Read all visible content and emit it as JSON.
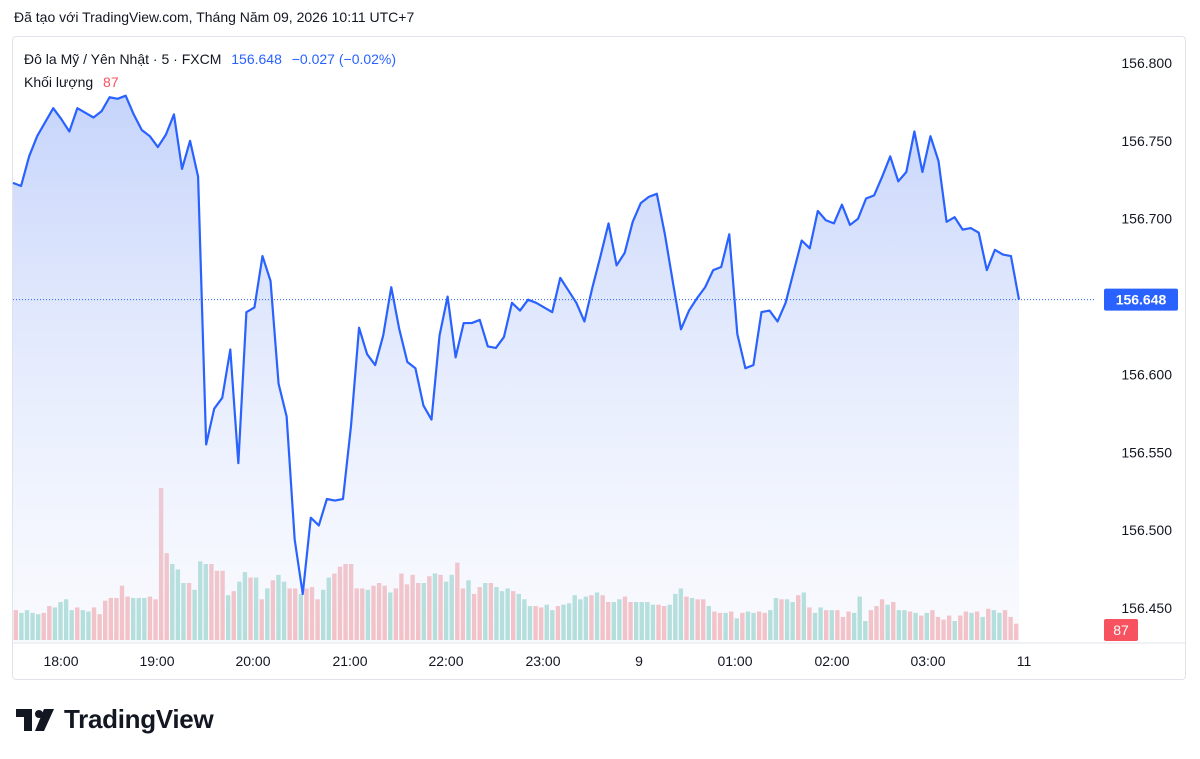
{
  "caption": "Đã tạo với TradingView.com, Tháng Năm 09, 2026 10:11 UTC+7",
  "legend": {
    "symbol": "Đô la Mỹ / Yên Nhật · 5 · FXCM",
    "last": "156.648",
    "change": "−0.027 (−0.02%)",
    "volume_label": "Khối lượng",
    "volume_value": "87"
  },
  "brand": {
    "name": "TradingView"
  },
  "colors": {
    "line": "#2962ff",
    "fill_top": "#c3d2fb",
    "up_volume": "#93d4c8",
    "down_volume": "#f5a8aa",
    "last_badge": "#2962ff",
    "volume_badge": "#f7525f"
  },
  "chart_data": {
    "type": "area",
    "series": [
      {
        "values": [
          156.723,
          156.721,
          156.74,
          156.753,
          156.762,
          156.771,
          156.764,
          156.756,
          156.771,
          156.768,
          156.765,
          156.769,
          156.778,
          156.777,
          156.779,
          156.767,
          156.757,
          156.753,
          156.746,
          156.754,
          156.767,
          156.732,
          156.75,
          156.727,
          156.555,
          156.578,
          156.585,
          156.616,
          156.543,
          156.64,
          156.643,
          156.676,
          156.66,
          156.594,
          156.573,
          156.494,
          156.459,
          156.508,
          156.503,
          156.52,
          156.519,
          156.52,
          156.567,
          156.63,
          156.613,
          156.606,
          156.625,
          156.656,
          156.629,
          156.608,
          156.604,
          156.58,
          156.571,
          156.625,
          156.65,
          156.611,
          156.633,
          156.633,
          156.635,
          156.618,
          156.617,
          156.624,
          156.646,
          156.641,
          156.648,
          156.646,
          156.643,
          156.64,
          156.662,
          156.654,
          156.646,
          156.634,
          156.656,
          156.676,
          156.697,
          156.67,
          156.678,
          156.698,
          156.71,
          156.714,
          156.716,
          156.69,
          156.659,
          156.629,
          156.641,
          156.649,
          156.656,
          156.667,
          156.669,
          156.69,
          156.626,
          156.604,
          156.606,
          156.64,
          156.641,
          156.634,
          156.646,
          156.666,
          156.686,
          156.681,
          156.705,
          156.699,
          156.697,
          156.709,
          156.696,
          156.7,
          156.713,
          156.715,
          156.727,
          156.74,
          156.724,
          156.73,
          156.756,
          156.73,
          156.753,
          156.737,
          156.698,
          156.701,
          156.693,
          156.694,
          156.691,
          156.667,
          156.68,
          156.677,
          156.676,
          156.648
        ]
      }
    ],
    "volume": {
      "values": [
        22,
        20,
        22,
        20,
        19,
        20,
        25,
        24,
        28,
        30,
        22,
        24,
        22,
        21,
        24,
        19,
        29,
        31,
        31,
        40,
        32,
        31,
        31,
        31,
        32,
        30,
        112,
        64,
        56,
        52,
        42,
        42,
        37,
        58,
        56,
        56,
        51,
        51,
        33,
        36,
        43,
        50,
        46,
        46,
        30,
        38,
        44,
        48,
        43,
        38,
        38,
        34,
        38,
        39,
        30,
        37,
        46,
        49,
        54,
        56,
        56,
        38,
        38,
        37,
        40,
        42,
        40,
        35,
        38,
        49,
        41,
        48,
        42,
        42,
        47,
        49,
        48,
        43,
        48,
        57,
        38,
        44,
        34,
        39,
        42,
        42,
        39,
        36,
        38,
        36,
        34,
        30,
        25,
        25,
        24,
        26,
        22,
        25,
        26,
        27,
        33,
        30,
        32,
        33,
        35,
        33,
        28,
        28,
        30,
        32,
        28,
        28,
        28,
        28,
        26,
        26,
        25,
        26,
        34,
        38,
        32,
        31,
        30,
        30,
        25,
        21,
        20,
        20,
        21,
        16,
        20,
        21,
        20,
        21,
        20,
        22,
        31,
        30,
        30,
        28,
        33,
        35,
        24,
        20,
        24,
        22,
        22,
        22,
        17,
        21,
        20,
        32,
        14,
        22,
        25,
        30,
        26,
        28,
        22,
        22,
        21,
        20,
        18,
        20,
        22,
        17,
        15,
        18,
        14,
        18,
        21,
        20,
        21,
        17,
        23,
        22,
        20,
        22,
        17,
        12
      ],
      "up": [
        false,
        true,
        true,
        true,
        true,
        false,
        false,
        true,
        true,
        true,
        true,
        false,
        true,
        true,
        false,
        false,
        false,
        false,
        false,
        false,
        false,
        true,
        true,
        true,
        false,
        false,
        false,
        false,
        true,
        true,
        true,
        false,
        true,
        true,
        true,
        false,
        false,
        false,
        true,
        false,
        true,
        true,
        false,
        true,
        false,
        true,
        false,
        true,
        true,
        false,
        false,
        true,
        false,
        false,
        false,
        true,
        true,
        false,
        false,
        false,
        false,
        false,
        false,
        true,
        false,
        false,
        false,
        true,
        false,
        false,
        false,
        false,
        false,
        true,
        false,
        true,
        false,
        true,
        true,
        false,
        false,
        true,
        false,
        false,
        true,
        false,
        true,
        true,
        true,
        false,
        true,
        true,
        true,
        false,
        false,
        true,
        true,
        false,
        true,
        true,
        true,
        true,
        true,
        false,
        true,
        false,
        false,
        true,
        true,
        false,
        false,
        true,
        true,
        true,
        true,
        false,
        false,
        true,
        true,
        true,
        false,
        true,
        false,
        false,
        true,
        false,
        false,
        true,
        false,
        true,
        false,
        true,
        true,
        false,
        false,
        true,
        true,
        false,
        true,
        true,
        false,
        true,
        false,
        true,
        true,
        false,
        true,
        false,
        false,
        false,
        true,
        true,
        true,
        false,
        false,
        false,
        true,
        false,
        true,
        true,
        false,
        true,
        false,
        true,
        false,
        false,
        false,
        false,
        true,
        false,
        false,
        true,
        false,
        true,
        false,
        true,
        true,
        false,
        false,
        false
      ],
      "last_value": 87
    },
    "x_ticks": [
      "18:00",
      "19:00",
      "20:00",
      "21:00",
      "22:00",
      "23:00",
      "9",
      "01:00",
      "02:00",
      "03:00",
      "11"
    ],
    "y_ticks": [
      "156.800",
      "156.750",
      "156.700",
      "156.650",
      "156.600",
      "156.550",
      "156.500",
      "156.450"
    ],
    "y_range": [
      156.427,
      156.817
    ],
    "last_price_label": "156.648",
    "volume_badge_label": "87",
    "grid": false
  }
}
